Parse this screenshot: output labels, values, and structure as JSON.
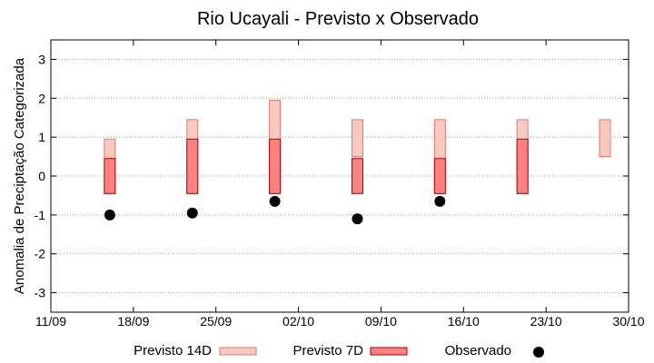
{
  "chart_data": {
    "type": "bar",
    "title": "Rio Ucayali - Previsto x Observado",
    "xlabel": "",
    "ylabel": "Anomalia de Preciptação Categorizada",
    "ylim": [
      -3.5,
      3.5
    ],
    "yticks": [
      -3,
      -2,
      -1,
      0,
      1,
      2,
      3
    ],
    "xlim": [
      "2017-09-11",
      "2017-10-30"
    ],
    "xtick_labels": [
      "11/09",
      "18/09",
      "25/09",
      "02/10",
      "09/10",
      "16/10",
      "23/10",
      "30/10"
    ],
    "grid": true,
    "grid_axis": "y",
    "legend_position": "bottom",
    "series": [
      {
        "name": "Previsto 14D",
        "kind": "floating-bar",
        "color": "#f9c9c0",
        "edge_color": "#e07a6a",
        "points": [
          {
            "x": "2017-09-16",
            "low": -0.45,
            "high": 0.95
          },
          {
            "x": "2017-09-23",
            "low": -0.45,
            "high": 1.45
          },
          {
            "x": "2017-09-30",
            "low": -0.45,
            "high": 1.95
          },
          {
            "x": "2017-10-07",
            "low": 0.5,
            "high": 1.45
          },
          {
            "x": "2017-10-14",
            "low": -0.45,
            "high": 1.45
          },
          {
            "x": "2017-10-21",
            "low": -0.45,
            "high": 1.45
          },
          {
            "x": "2017-10-28",
            "low": 0.5,
            "high": 1.45
          }
        ]
      },
      {
        "name": "Previsto 7D",
        "kind": "floating-bar",
        "color": "#ff8080",
        "edge_color": "#b00000",
        "points": [
          {
            "x": "2017-09-16",
            "low": -0.45,
            "high": 0.45
          },
          {
            "x": "2017-09-23",
            "low": -0.45,
            "high": 0.95
          },
          {
            "x": "2017-09-30",
            "low": -0.45,
            "high": 0.95
          },
          {
            "x": "2017-10-07",
            "low": -0.45,
            "high": 0.45
          },
          {
            "x": "2017-10-14",
            "low": -0.45,
            "high": 0.45
          },
          {
            "x": "2017-10-21",
            "low": -0.45,
            "high": 0.95
          }
        ]
      },
      {
        "name": "Observado",
        "kind": "scatter",
        "color": "#000000",
        "points": [
          {
            "x": "2017-09-16",
            "y": -1.0
          },
          {
            "x": "2017-09-23",
            "y": -0.95
          },
          {
            "x": "2017-09-30",
            "y": -0.65
          },
          {
            "x": "2017-10-07",
            "y": -1.1
          },
          {
            "x": "2017-10-14",
            "y": -0.65
          }
        ]
      }
    ]
  }
}
